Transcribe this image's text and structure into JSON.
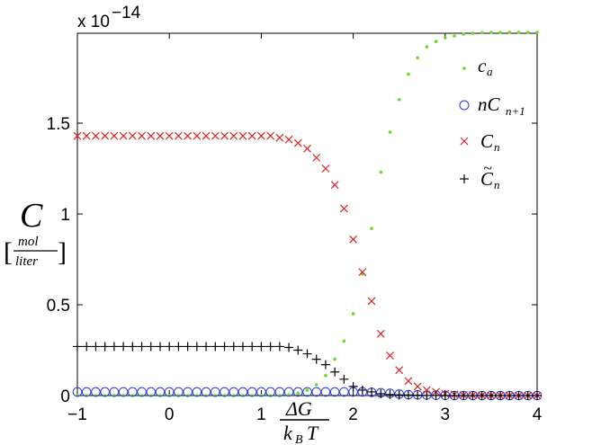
{
  "chart_data": {
    "type": "scatter",
    "title": "",
    "exponent_label": {
      "base": "x 10",
      "power": "−14"
    },
    "xlabel": {
      "numerator": "ΔG",
      "denominator_main": "k",
      "denominator_sub": "B",
      "denominator_tail": "T"
    },
    "ylabel": {
      "symbol": "C",
      "unit_numerator": "mol",
      "unit_denominator": "liter",
      "bracket_open": "[",
      "bracket_close": "]"
    },
    "xlim": [
      -1,
      4
    ],
    "ylim": [
      0,
      2
    ],
    "x_ticks": [
      -1,
      0,
      1,
      2,
      3,
      4
    ],
    "x_tick_labels": [
      "−1",
      "0",
      "1",
      "2",
      "3",
      "4"
    ],
    "y_ticks": [
      0,
      0.5,
      1,
      1.5
    ],
    "y_tick_labels": [
      "0",
      "0.5",
      "1",
      "1.5"
    ],
    "grid": false,
    "legend_position": "top-right",
    "x_start": -1,
    "x_step": 0.1,
    "series": [
      {
        "name": "c_a",
        "legend_main": "c",
        "legend_sub": "a",
        "marker": "dot",
        "color": "#66dd22",
        "values": [
          0,
          0,
          0,
          0,
          0,
          0,
          0,
          0,
          0,
          0,
          0,
          0,
          0,
          0,
          0,
          0,
          0,
          0,
          0,
          0,
          0,
          0,
          0,
          0.004,
          0.013,
          0.03,
          0.06,
          0.11,
          0.2,
          0.3,
          0.45,
          0.67,
          0.92,
          1.23,
          1.45,
          1.63,
          1.77,
          1.86,
          1.92,
          1.95,
          1.97,
          1.98,
          1.99,
          1.995,
          1.998,
          2.0,
          2.0,
          2.0,
          2.0,
          2.0,
          2.0
        ]
      },
      {
        "name": "nC_{n+1}",
        "legend_main": "nC",
        "legend_sub": "n+1",
        "marker": "circle",
        "color": "#2233dd",
        "values": [
          0.02,
          0.02,
          0.02,
          0.02,
          0.02,
          0.02,
          0.02,
          0.02,
          0.02,
          0.02,
          0.02,
          0.02,
          0.02,
          0.02,
          0.02,
          0.02,
          0.02,
          0.02,
          0.02,
          0.02,
          0.02,
          0.02,
          0.02,
          0.02,
          0.02,
          0.02,
          0.02,
          0.02,
          0.02,
          0.02,
          0.02,
          0.02,
          0.018,
          0.015,
          0.012,
          0.008,
          0.005,
          0.004,
          0.003,
          0.002,
          0.001,
          0,
          0,
          0,
          0,
          0,
          0,
          0,
          0,
          0,
          0
        ]
      },
      {
        "name": "C_n",
        "legend_main": "C",
        "legend_sub": "n",
        "marker": "x",
        "color": "#dd2222",
        "values": [
          1.43,
          1.43,
          1.43,
          1.43,
          1.43,
          1.43,
          1.43,
          1.43,
          1.43,
          1.43,
          1.43,
          1.43,
          1.43,
          1.43,
          1.43,
          1.43,
          1.43,
          1.43,
          1.43,
          1.43,
          1.43,
          1.43,
          1.42,
          1.41,
          1.39,
          1.36,
          1.31,
          1.25,
          1.16,
          1.03,
          0.86,
          0.68,
          0.52,
          0.34,
          0.22,
          0.14,
          0.08,
          0.05,
          0.03,
          0.02,
          0.01,
          0.006,
          0.003,
          0.002,
          0.001,
          0,
          0,
          0,
          0,
          0,
          0
        ]
      },
      {
        "name": "C~_n",
        "legend_main": "C",
        "legend_sub": "n",
        "legend_tilde": "~",
        "marker": "plus",
        "color": "#000000",
        "values": [
          0.27,
          0.27,
          0.27,
          0.27,
          0.27,
          0.27,
          0.27,
          0.27,
          0.27,
          0.27,
          0.27,
          0.27,
          0.27,
          0.27,
          0.27,
          0.27,
          0.27,
          0.27,
          0.27,
          0.27,
          0.27,
          0.27,
          0.27,
          0.265,
          0.25,
          0.23,
          0.2,
          0.17,
          0.13,
          0.09,
          0.05,
          0.03,
          0.02,
          0.01,
          0.006,
          0.004,
          0.003,
          0.002,
          0.001,
          0.001,
          0,
          0,
          0,
          0,
          0,
          0,
          0,
          0,
          0,
          0,
          0
        ]
      }
    ]
  }
}
